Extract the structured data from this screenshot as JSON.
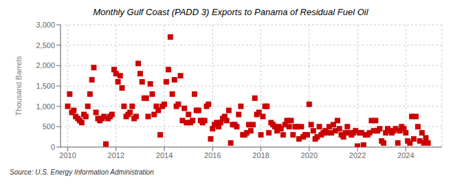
{
  "chart_data": {
    "type": "scatter",
    "title": "Monthly Gulf Coast (PADD 3) Exports to Panama of Residual Fuel Oil",
    "ylabel": "Thousand Barrels",
    "source": "Source: U.S. Energy Information Administration",
    "color": "#cc0000",
    "marker": "square",
    "grid": true,
    "xlim": [
      2009.7,
      2025.5
    ],
    "xticks": [
      2010,
      2012,
      2014,
      2016,
      2018,
      2020,
      2022,
      2024
    ],
    "ylim": [
      0,
      3000
    ],
    "yticks": [
      0,
      500,
      {
        "value": 1000,
        "label": "1,000"
      },
      {
        "value": 1500,
        "label": "1,500"
      },
      {
        "value": 2000,
        "label": "2,000"
      },
      {
        "value": 2500,
        "label": "2,500"
      },
      {
        "value": 3000,
        "label": "3,000"
      }
    ],
    "x": [
      2010.0,
      2010.08,
      2010.17,
      2010.25,
      2010.33,
      2010.42,
      2010.5,
      2010.58,
      2010.67,
      2010.75,
      2010.83,
      2010.92,
      2011.0,
      2011.08,
      2011.17,
      2011.25,
      2011.33,
      2011.42,
      2011.5,
      2011.58,
      2011.67,
      2011.75,
      2011.83,
      2011.92,
      2012.0,
      2012.08,
      2012.17,
      2012.25,
      2012.33,
      2012.42,
      2012.5,
      2012.58,
      2012.67,
      2012.75,
      2012.83,
      2012.92,
      2013.0,
      2013.08,
      2013.17,
      2013.25,
      2013.33,
      2013.42,
      2013.5,
      2013.58,
      2013.67,
      2013.75,
      2013.83,
      2013.92,
      2014.0,
      2014.08,
      2014.17,
      2014.25,
      2014.33,
      2014.42,
      2014.5,
      2014.58,
      2014.67,
      2014.75,
      2014.83,
      2014.92,
      2015.0,
      2015.08,
      2015.17,
      2015.25,
      2015.33,
      2015.42,
      2015.5,
      2015.58,
      2015.67,
      2015.75,
      2015.83,
      2015.92,
      2016.0,
      2016.08,
      2016.17,
      2016.25,
      2016.33,
      2016.42,
      2016.5,
      2016.58,
      2016.67,
      2016.75,
      2016.83,
      2016.92,
      2017.0,
      2017.08,
      2017.17,
      2017.25,
      2017.33,
      2017.42,
      2017.5,
      2017.58,
      2017.67,
      2017.75,
      2017.83,
      2017.92,
      2018.0,
      2018.08,
      2018.17,
      2018.25,
      2018.33,
      2018.42,
      2018.5,
      2018.58,
      2018.67,
      2018.75,
      2018.83,
      2018.92,
      2019.0,
      2019.08,
      2019.17,
      2019.25,
      2019.33,
      2019.42,
      2019.5,
      2019.58,
      2019.67,
      2019.75,
      2019.83,
      2019.92,
      2020.0,
      2020.08,
      2020.17,
      2020.25,
      2020.33,
      2020.42,
      2020.5,
      2020.58,
      2020.67,
      2020.75,
      2020.83,
      2020.92,
      2021.0,
      2021.08,
      2021.17,
      2021.25,
      2021.33,
      2021.42,
      2021.5,
      2021.58,
      2021.67,
      2021.75,
      2021.83,
      2021.92,
      2022.0,
      2022.08,
      2022.17,
      2022.25,
      2022.33,
      2022.42,
      2022.5,
      2022.58,
      2022.67,
      2022.75,
      2022.83,
      2022.92,
      2023.0,
      2023.08,
      2023.17,
      2023.25,
      2023.33,
      2023.42,
      2023.5,
      2023.58,
      2023.67,
      2023.75,
      2023.83,
      2023.92,
      2024.0,
      2024.08,
      2024.17,
      2024.25,
      2024.33,
      2024.42,
      2024.5,
      2024.58,
      2024.67,
      2024.75,
      2024.83,
      2024.92
    ],
    "values": [
      1000,
      1300,
      850,
      900,
      750,
      700,
      650,
      600,
      800,
      750,
      1000,
      1300,
      1650,
      1950,
      850,
      700,
      650,
      700,
      750,
      75,
      700,
      750,
      800,
      1900,
      1800,
      1600,
      1750,
      1450,
      1000,
      750,
      800,
      850,
      1000,
      700,
      750,
      2050,
      1800,
      1600,
      1200,
      1200,
      750,
      1550,
      1300,
      800,
      1000,
      900,
      300,
      1000,
      1050,
      1600,
      1900,
      2700,
      1300,
      1650,
      1000,
      1050,
      1750,
      650,
      950,
      600,
      800,
      600,
      650,
      1300,
      900,
      900,
      650,
      600,
      650,
      1000,
      1050,
      200,
      450,
      550,
      600,
      500,
      600,
      700,
      750,
      650,
      900,
      100,
      550,
      550,
      500,
      800,
      1000,
      300,
      300,
      350,
      550,
      400,
      550,
      1200,
      800,
      850,
      300,
      750,
      1000,
      1000,
      350,
      600,
      550,
      500,
      400,
      500,
      450,
      300,
      550,
      650,
      500,
      650,
      300,
      500,
      500,
      200,
      500,
      250,
      300,
      300,
      1050,
      550,
      400,
      200,
      250,
      500,
      300,
      350,
      400,
      350,
      500,
      350,
      550,
      400,
      650,
      450,
      300,
      250,
      350,
      500,
      350,
      300,
      350,
      400,
      25,
      350,
      350,
      50,
      300,
      300,
      350,
      650,
      400,
      650,
      400,
      450,
      150,
      100,
      350,
      450,
      400,
      350,
      400,
      450,
      100,
      400,
      500,
      450,
      350,
      150,
      100,
      750,
      200,
      750,
      500,
      150,
      350,
      100,
      225,
      100
    ]
  }
}
